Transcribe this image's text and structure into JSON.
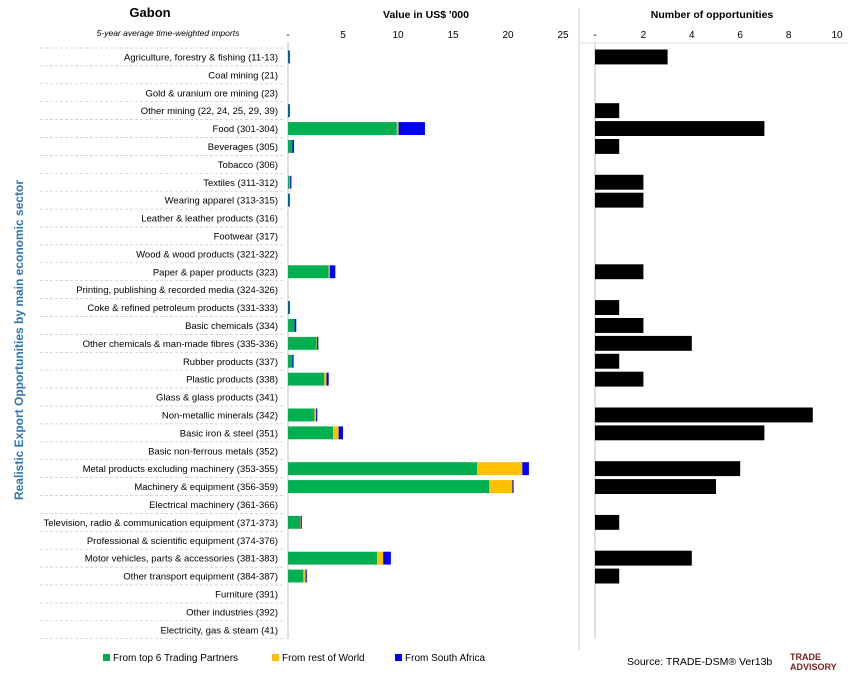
{
  "header": {
    "country": "Gabon",
    "subtitle": "5-year average time-weighted imports",
    "side_label": "Realistic Export Opportunities by main economic sector",
    "source": "Source: TRADE-DSM®  Ver13b",
    "logo_line1": "TRADE",
    "logo_line2": "ADVISORY"
  },
  "colors": {
    "top6": "#00b050",
    "rest": "#ffc000",
    "sa": "#0000ff",
    "count": "#000000",
    "side_label": "#2e75b6"
  },
  "chart_data": [
    {
      "type": "bar",
      "orientation": "horizontal",
      "stacked": true,
      "title": "Value in US$ '000",
      "xlim": [
        0,
        25
      ],
      "ticks": [
        "-",
        "5",
        "10",
        "15",
        "20",
        "25"
      ],
      "grid": false,
      "legend_position": "bottom",
      "categories": [
        "Agriculture, forestry & fishing (11-13)",
        "Coal mining (21)",
        "Gold & uranium ore mining (23)",
        "Other mining (22, 24, 25, 29, 39)",
        "Food (301-304)",
        "Beverages (305)",
        "Tobacco (306)",
        "Textiles (311-312)",
        "Wearing apparel (313-315)",
        "Leather & leather products (316)",
        "Footwear (317)",
        "Wood & wood products (321-322)",
        "Paper & paper products (323)",
        "Printing, publishing & recorded media (324-326)",
        "Coke & refined petroleum products (331-333)",
        "Basic chemicals (334)",
        "Other chemicals & man-made fibres (335-336)",
        "Rubber products (337)",
        "Plastic products (338)",
        "Glass & glass products (341)",
        "Non-metallic minerals (342)",
        "Basic iron & steel (351)",
        "Basic non-ferrous metals (352)",
        "Metal products excluding machinery (353-355)",
        "Machinery & equipment (356-359)",
        "Electrical machinery (361-366)",
        "Television, radio & communication equipment (371-373)",
        "Professional & scientific equipment (374-376)",
        "Motor vehicles, parts & accessories (381-383)",
        "Other transport equipment (384-387)",
        "Furniture (391)",
        "Other industries (392)",
        "Electricity, gas & steam (41)"
      ],
      "series": [
        {
          "name": "From top 6 Trading Partners",
          "values": [
            0.05,
            0,
            0,
            0.05,
            9.9,
            0.4,
            0,
            0.15,
            0.05,
            0,
            0,
            0,
            3.7,
            0,
            0.05,
            0.6,
            2.6,
            0.4,
            3.3,
            0,
            2.4,
            4.1,
            0,
            17.2,
            18.3,
            0,
            1.1,
            0,
            8.1,
            1.4,
            0,
            0,
            0
          ]
        },
        {
          "name": "From rest of World",
          "values": [
            0,
            0,
            0,
            0,
            0.15,
            0,
            0,
            0.05,
            0,
            0,
            0,
            0,
            0.1,
            0,
            0,
            0,
            0.05,
            0,
            0.2,
            0,
            0.15,
            0.5,
            0,
            4.1,
            2.1,
            0,
            0.05,
            0,
            0.55,
            0.2,
            0,
            0,
            0
          ]
        },
        {
          "name": "From South Africa",
          "values": [
            0.1,
            0,
            0,
            0.1,
            2.4,
            0.15,
            0,
            0.05,
            0.1,
            0,
            0,
            0,
            0.5,
            0,
            0.05,
            0.15,
            0.05,
            0.1,
            0.2,
            0,
            0.05,
            0.4,
            0,
            0.6,
            0.1,
            0,
            0.05,
            0,
            0.7,
            0.1,
            0,
            0,
            0
          ]
        }
      ]
    },
    {
      "type": "bar",
      "orientation": "horizontal",
      "title": "Number of opportunities",
      "xlim": [
        0,
        10
      ],
      "ticks": [
        "-",
        "2",
        "4",
        "6",
        "8",
        "10"
      ],
      "grid": false,
      "series": [
        {
          "values": [
            3,
            0,
            0,
            1,
            7,
            1,
            0,
            2,
            2,
            0,
            0,
            0,
            2,
            0,
            1,
            2,
            4,
            1,
            2,
            0,
            9,
            7,
            0,
            6,
            5,
            0,
            1,
            0,
            4,
            1,
            0,
            0,
            0
          ]
        }
      ]
    }
  ]
}
